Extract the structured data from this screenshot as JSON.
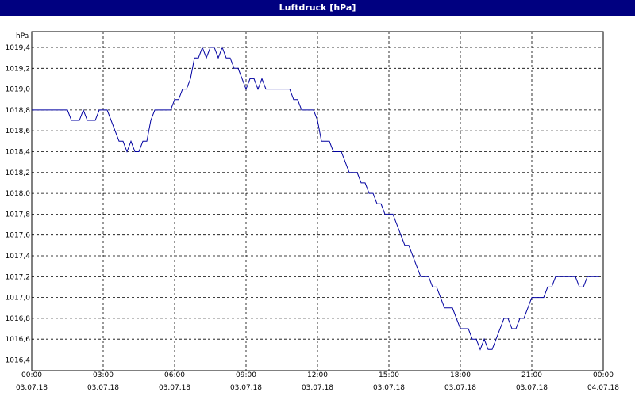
{
  "title": "Luftdruck [hPa]",
  "chart_data": {
    "type": "line",
    "title": "Luftdruck [hPa]",
    "ylabel": "hPa",
    "xlabel": "",
    "ylim": [
      1016.4,
      1019.5
    ],
    "xlim": [
      "03.07.18 00:00",
      "04.07.18 00:00"
    ],
    "grid": true,
    "legend": "none",
    "line_color": "#0000a0",
    "y_ticks": [
      "1016,4",
      "1016,6",
      "1016,8",
      "1017,0",
      "1017,2",
      "1017,4",
      "1017,6",
      "1017,8",
      "1018,0",
      "1018,2",
      "1018,4",
      "1018,6",
      "1018,8",
      "1019,0",
      "1019,2",
      "1019,4"
    ],
    "x_ticks": [
      {
        "time": "00:00",
        "date": "03.07.18"
      },
      {
        "time": "03:00",
        "date": "03.07.18"
      },
      {
        "time": "06:00",
        "date": "03.07.18"
      },
      {
        "time": "09:00",
        "date": "03.07.18"
      },
      {
        "time": "12:00",
        "date": "03.07.18"
      },
      {
        "time": "15:00",
        "date": "03.07.18"
      },
      {
        "time": "18:00",
        "date": "03.07.18"
      },
      {
        "time": "21:00",
        "date": "03.07.18"
      },
      {
        "time": "00:00",
        "date": "04.07.18"
      }
    ],
    "series": [
      {
        "points": [
          [
            "03.07.18 00:00",
            1018.8
          ],
          [
            "03.07.18 01:30",
            1018.8
          ],
          [
            "03.07.18 01:40",
            1018.7
          ],
          [
            "03.07.18 02:00",
            1018.7
          ],
          [
            "03.07.18 02:10",
            1018.8
          ],
          [
            "03.07.18 02:20",
            1018.7
          ],
          [
            "03.07.18 02:40",
            1018.7
          ],
          [
            "03.07.18 02:50",
            1018.8
          ],
          [
            "03.07.18 03:10",
            1018.8
          ],
          [
            "03.07.18 03:30",
            1018.6
          ],
          [
            "03.07.18 03:40",
            1018.5
          ],
          [
            "03.07.18 03:50",
            1018.5
          ],
          [
            "03.07.18 04:00",
            1018.4
          ],
          [
            "03.07.18 04:10",
            1018.5
          ],
          [
            "03.07.18 04:20",
            1018.4
          ],
          [
            "03.07.18 04:30",
            1018.4
          ],
          [
            "03.07.18 04:40",
            1018.5
          ],
          [
            "03.07.18 04:50",
            1018.5
          ],
          [
            "03.07.18 05:00",
            1018.7
          ],
          [
            "03.07.18 05:10",
            1018.8
          ],
          [
            "03.07.18 05:50",
            1018.8
          ],
          [
            "03.07.18 06:00",
            1018.9
          ],
          [
            "03.07.18 06:10",
            1018.9
          ],
          [
            "03.07.18 06:20",
            1019.0
          ],
          [
            "03.07.18 06:30",
            1019.0
          ],
          [
            "03.07.18 06:40",
            1019.1
          ],
          [
            "03.07.18 06:50",
            1019.3
          ],
          [
            "03.07.18 07:00",
            1019.3
          ],
          [
            "03.07.18 07:10",
            1019.4
          ],
          [
            "03.07.18 07:20",
            1019.3
          ],
          [
            "03.07.18 07:30",
            1019.4
          ],
          [
            "03.07.18 07:40",
            1019.4
          ],
          [
            "03.07.18 07:50",
            1019.3
          ],
          [
            "03.07.18 08:00",
            1019.4
          ],
          [
            "03.07.18 08:10",
            1019.3
          ],
          [
            "03.07.18 08:20",
            1019.3
          ],
          [
            "03.07.18 08:30",
            1019.2
          ],
          [
            "03.07.18 08:40",
            1019.2
          ],
          [
            "03.07.18 09:00",
            1019.0
          ],
          [
            "03.07.18 09:10",
            1019.1
          ],
          [
            "03.07.18 09:20",
            1019.1
          ],
          [
            "03.07.18 09:30",
            1019.0
          ],
          [
            "03.07.18 09:40",
            1019.1
          ],
          [
            "03.07.18 09:50",
            1019.0
          ],
          [
            "03.07.18 10:50",
            1019.0
          ],
          [
            "03.07.18 11:00",
            1018.9
          ],
          [
            "03.07.18 11:10",
            1018.9
          ],
          [
            "03.07.18 11:20",
            1018.8
          ],
          [
            "03.07.18 11:50",
            1018.8
          ],
          [
            "03.07.18 12:00",
            1018.7
          ],
          [
            "03.07.18 12:10",
            1018.5
          ],
          [
            "03.07.18 12:30",
            1018.5
          ],
          [
            "03.07.18 12:40",
            1018.4
          ],
          [
            "03.07.18 13:00",
            1018.4
          ],
          [
            "03.07.18 13:20",
            1018.2
          ],
          [
            "03.07.18 13:40",
            1018.2
          ],
          [
            "03.07.18 13:50",
            1018.1
          ],
          [
            "03.07.18 14:00",
            1018.1
          ],
          [
            "03.07.18 14:10",
            1018.0
          ],
          [
            "03.07.18 14:20",
            1018.0
          ],
          [
            "03.07.18 14:30",
            1017.9
          ],
          [
            "03.07.18 14:40",
            1017.9
          ],
          [
            "03.07.18 14:50",
            1017.8
          ],
          [
            "03.07.18 15:10",
            1017.8
          ],
          [
            "03.07.18 15:20",
            1017.7
          ],
          [
            "03.07.18 15:30",
            1017.6
          ],
          [
            "03.07.18 15:40",
            1017.5
          ],
          [
            "03.07.18 15:50",
            1017.5
          ],
          [
            "03.07.18 16:00",
            1017.4
          ],
          [
            "03.07.18 16:10",
            1017.3
          ],
          [
            "03.07.18 16:20",
            1017.2
          ],
          [
            "03.07.18 16:40",
            1017.2
          ],
          [
            "03.07.18 16:50",
            1017.1
          ],
          [
            "03.07.18 17:00",
            1017.1
          ],
          [
            "03.07.18 17:10",
            1017.0
          ],
          [
            "03.07.18 17:20",
            1016.9
          ],
          [
            "03.07.18 17:40",
            1016.9
          ],
          [
            "03.07.18 17:50",
            1016.8
          ],
          [
            "03.07.18 18:00",
            1016.7
          ],
          [
            "03.07.18 18:20",
            1016.7
          ],
          [
            "03.07.18 18:30",
            1016.6
          ],
          [
            "03.07.18 18:40",
            1016.6
          ],
          [
            "03.07.18 18:50",
            1016.5
          ],
          [
            "03.07.18 19:00",
            1016.6
          ],
          [
            "03.07.18 19:10",
            1016.5
          ],
          [
            "03.07.18 19:20",
            1016.5
          ],
          [
            "03.07.18 19:40",
            1016.7
          ],
          [
            "03.07.18 19:50",
            1016.8
          ],
          [
            "03.07.18 20:00",
            1016.8
          ],
          [
            "03.07.18 20:10",
            1016.7
          ],
          [
            "03.07.18 20:20",
            1016.7
          ],
          [
            "03.07.18 20:30",
            1016.8
          ],
          [
            "03.07.18 20:40",
            1016.8
          ],
          [
            "03.07.18 20:50",
            1016.9
          ],
          [
            "03.07.18 21:00",
            1017.0
          ],
          [
            "03.07.18 21:30",
            1017.0
          ],
          [
            "03.07.18 21:40",
            1017.1
          ],
          [
            "03.07.18 21:50",
            1017.1
          ],
          [
            "03.07.18 22:00",
            1017.2
          ],
          [
            "03.07.18 22:50",
            1017.2
          ],
          [
            "03.07.18 23:00",
            1017.1
          ],
          [
            "03.07.18 23:10",
            1017.1
          ],
          [
            "03.07.18 23:20",
            1017.2
          ],
          [
            "03.07.18 23:50",
            1017.2
          ]
        ]
      }
    ]
  }
}
